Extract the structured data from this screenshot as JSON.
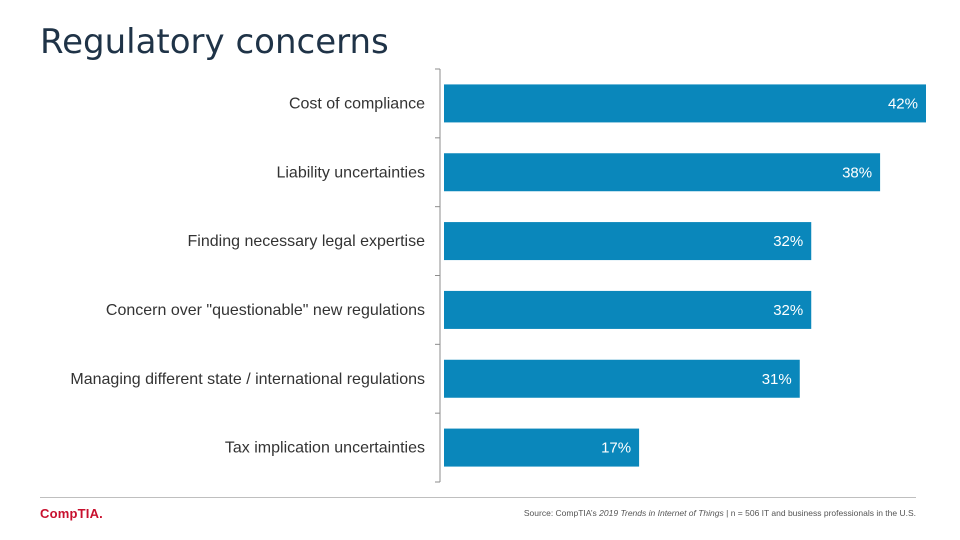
{
  "slide": {
    "title": "Regulatory concerns"
  },
  "chart_data": {
    "type": "bar",
    "orientation": "horizontal",
    "categories": [
      "Cost of compliance",
      "Liability uncertainties",
      "Finding necessary legal expertise",
      "Concern over \"questionable\" new regulations",
      "Managing different state / international regulations",
      "Tax implication uncertainties"
    ],
    "values": [
      42,
      38,
      32,
      32,
      31,
      17
    ],
    "value_labels": [
      "42%",
      "38%",
      "32%",
      "32%",
      "31%",
      "17%"
    ],
    "xlim": [
      0,
      42
    ],
    "bar_color": "#0a87bb"
  },
  "footer": {
    "logo_text": "CompTIA.",
    "source_prefix": "Source: CompTIA’s ",
    "source_title": "2019 Trends in Internet of Things",
    "source_suffix": " | n = 506 IT and business professionals in the U.S."
  }
}
